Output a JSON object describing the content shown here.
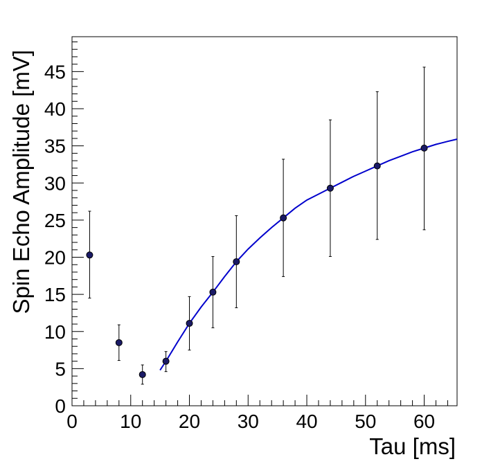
{
  "chart_data": {
    "type": "scatter",
    "title": "",
    "xlabel": "Tau [ms]",
    "ylabel": "Spin Echo Amplitude [mV]",
    "xlim": [
      0,
      65.6
    ],
    "ylim": [
      0,
      49.7
    ],
    "xticks": [
      0,
      10,
      20,
      30,
      40,
      50,
      60
    ],
    "yticks": [
      0,
      5,
      10,
      15,
      20,
      25,
      30,
      35,
      40,
      45
    ],
    "x_minor_step": 2,
    "y_minor_step": 1,
    "grid": false,
    "legend": "none",
    "series": [
      {
        "kind": "points-with-errorbars",
        "color": "#000000",
        "fill": "#1a1a66",
        "points": [
          {
            "x": 3,
            "y": 20.3,
            "ylow": 14.5,
            "yhigh": 26.2
          },
          {
            "x": 8,
            "y": 8.5,
            "ylow": 6.1,
            "yhigh": 10.9
          },
          {
            "x": 12,
            "y": 4.2,
            "ylow": 2.9,
            "yhigh": 5.5
          },
          {
            "x": 16,
            "y": 6.0,
            "ylow": 4.6,
            "yhigh": 7.3
          },
          {
            "x": 20,
            "y": 11.1,
            "ylow": 7.5,
            "yhigh": 14.7
          },
          {
            "x": 24,
            "y": 15.3,
            "ylow": 10.5,
            "yhigh": 20.1
          },
          {
            "x": 28,
            "y": 19.4,
            "ylow": 13.2,
            "yhigh": 25.6
          },
          {
            "x": 36,
            "y": 25.3,
            "ylow": 17.4,
            "yhigh": 33.2
          },
          {
            "x": 44,
            "y": 29.3,
            "ylow": 20.1,
            "yhigh": 38.5
          },
          {
            "x": 52,
            "y": 32.3,
            "ylow": 22.4,
            "yhigh": 42.3
          },
          {
            "x": 60,
            "y": 34.7,
            "ylow": 23.7,
            "yhigh": 45.6
          }
        ]
      },
      {
        "kind": "fit-curve",
        "color": "#0000cc",
        "x": [
          15,
          16,
          18,
          20,
          22,
          24,
          26,
          28,
          30,
          32,
          34,
          36,
          38,
          40,
          42,
          44,
          46,
          48,
          50,
          52,
          54,
          56,
          58,
          60,
          62,
          64,
          65.6
        ],
        "y": [
          4.8,
          6.0,
          8.6,
          11.1,
          13.3,
          15.3,
          17.4,
          19.4,
          21.1,
          22.6,
          24.0,
          25.3,
          26.6,
          27.7,
          28.5,
          29.3,
          30.1,
          30.9,
          31.6,
          32.3,
          33.0,
          33.6,
          34.2,
          34.7,
          35.2,
          35.6,
          35.9
        ]
      }
    ]
  }
}
